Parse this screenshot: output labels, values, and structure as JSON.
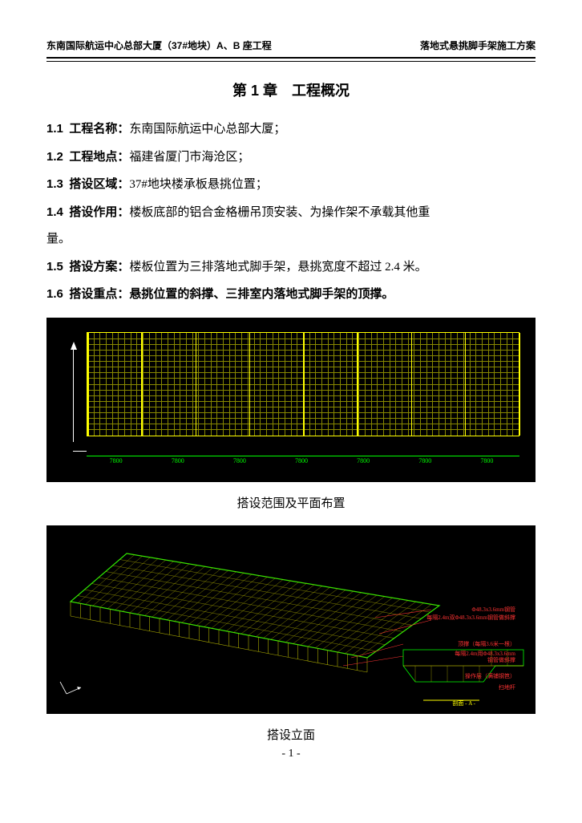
{
  "header": {
    "left": "东南国际航运中心总部大厦（37#地块）A、B 座工程",
    "right": "落地式悬挑脚手架施工方案"
  },
  "chapter": {
    "title": "第 1 章　工程概况"
  },
  "sections": {
    "s1": {
      "num": "1.1",
      "label": "工程名称：",
      "text": "东南国际航运中心总部大厦；"
    },
    "s2": {
      "num": "1.2",
      "label": "工程地点：",
      "text": "福建省厦门市海沧区；"
    },
    "s3": {
      "num": "1.3",
      "label": "搭设区域：",
      "text": "37#地块楼承板悬挑位置；"
    },
    "s4": {
      "num": "1.4",
      "label": "搭设作用：",
      "text": "楼板底部的铝合金格栅吊顶安装、为操作架不承载其他重"
    },
    "s4b": "量。",
    "s5": {
      "num": "1.5",
      "label": "搭设方案：",
      "text": "楼板位置为三排落地式脚手架，悬挑宽度不超过 2.4 米。"
    },
    "s6": {
      "num": "1.6",
      "label": "搭设重点：",
      "text": "悬挑位置的斜撑、三排室内落地式脚手架的顶撑。"
    }
  },
  "captions": {
    "c1": "搭设范围及平面布置",
    "c2": "搭设立面"
  },
  "diagram1": {
    "grid_rows": 18,
    "grid_cols": 70,
    "thick_cols": 8,
    "dim_labels": [
      "7800",
      "7800",
      "7800",
      "7800",
      "7800",
      "7800",
      "7800"
    ],
    "grid_color": "#a0a000",
    "thick_color": "#ffff00",
    "dim_color": "#00ff00",
    "bg_color": "#000000"
  },
  "diagram2": {
    "bg_color": "#000000",
    "scaffold_color": "#cccc00",
    "edge_color": "#00ff00",
    "label_color": "#ff3333",
    "labels": {
      "l1": "Φ48.3x3.6mm钢管",
      "l2": "每隔2.4m双Φ48.3x3.6mm钢管做斜撑",
      "l3": "顶撑（每隔3.6米一根）",
      "l4": "每隔2.4m用Φ48.3x3.6mm",
      "l5": "钢管做斜撑",
      "l6": "操作层（满铺钢笆）",
      "l7": "扫地杆",
      "l8": "剖面 - A -"
    }
  },
  "page_num": "- 1 -"
}
